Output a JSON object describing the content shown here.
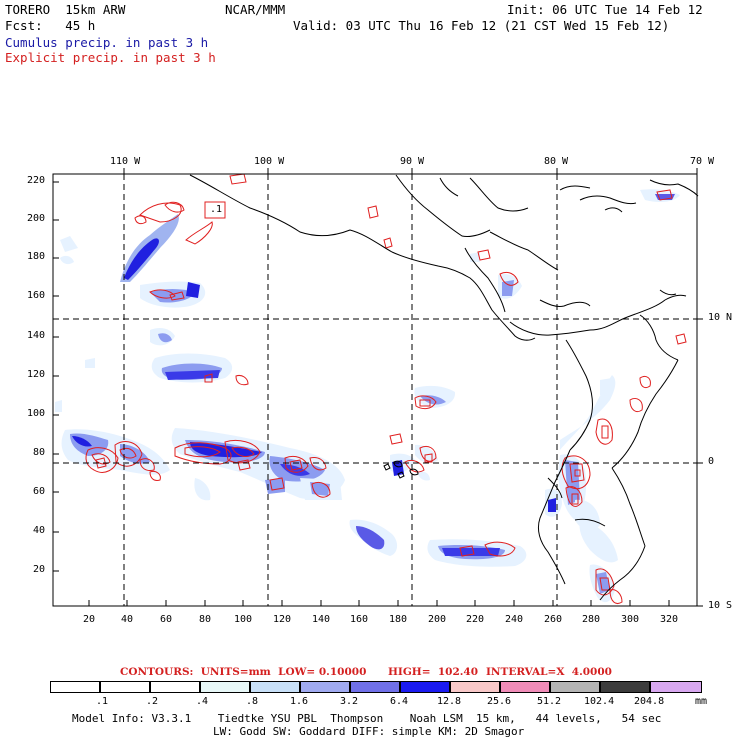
{
  "header": {
    "model": "TORERO  15km ARW",
    "org": "NCAR/MMM",
    "init": "Init: 06 UTC Tue 14 Feb 12",
    "fcst": "Fcst:   45 h",
    "valid": "Valid: 03 UTC Thu 16 Feb 12 (21 CST Wed 15 Feb 12)",
    "legend_cumulus": "Cumulus precip. in past 3 h",
    "legend_explicit": "Explicit precip. in past 3 h"
  },
  "map": {
    "lon_labels": [
      "110 W",
      "100 W",
      "90 W",
      "80 W",
      "70 W"
    ],
    "lat_labels": [
      "10 N",
      "0",
      "10 S"
    ],
    "y_ticks": [
      "220",
      "200",
      "180",
      "160",
      "140",
      "120",
      "100",
      "80",
      "60",
      "40",
      "20"
    ],
    "x_ticks": [
      "20",
      "40",
      "60",
      "80",
      "100",
      "120",
      "140",
      "160",
      "180",
      "200",
      "220",
      "240",
      "260",
      "280",
      "300",
      "320"
    ],
    "box_label": ".1",
    "colors": {
      "coast": "#000000",
      "cumulus_light": "#e6f2ff",
      "cumulus_mid": "#a0b4f0",
      "cumulus_dark": "#5a5ae6",
      "cumulus_max": "#1010e0",
      "explicit": "#e02020"
    }
  },
  "contours": {
    "title": "CONTOURS:  UNITS=mm  LOW= 0.10000",
    "high": "HIGH=  102.40",
    "interval": "INTERVAL=X  4.0000"
  },
  "colorbar": {
    "labels": [
      ".1",
      ".2",
      ".4",
      ".8",
      "1.6",
      "3.2",
      "6.4",
      "12.8",
      "25.6",
      "51.2",
      "102.4",
      "204.8"
    ],
    "unit": "mm",
    "colors": [
      "#ffffff",
      "#ffffff",
      "#ffffff",
      "#e8f8f8",
      "#c8e0f8",
      "#a0aaf0",
      "#7070e8",
      "#1a1af0",
      "#f8c8c8",
      "#f08cb8",
      "#b4b4b4",
      "#3c3c3c",
      "#d8a8f0"
    ]
  },
  "footer": {
    "line1": "Model Info: V3.3.1    Tiedtke YSU PBL  Thompson    Noah LSM  15 km,   44 levels,   54 sec",
    "line2": "LW: Godd SW: Goddard DIFF: simple KM: 2D Smagor"
  }
}
